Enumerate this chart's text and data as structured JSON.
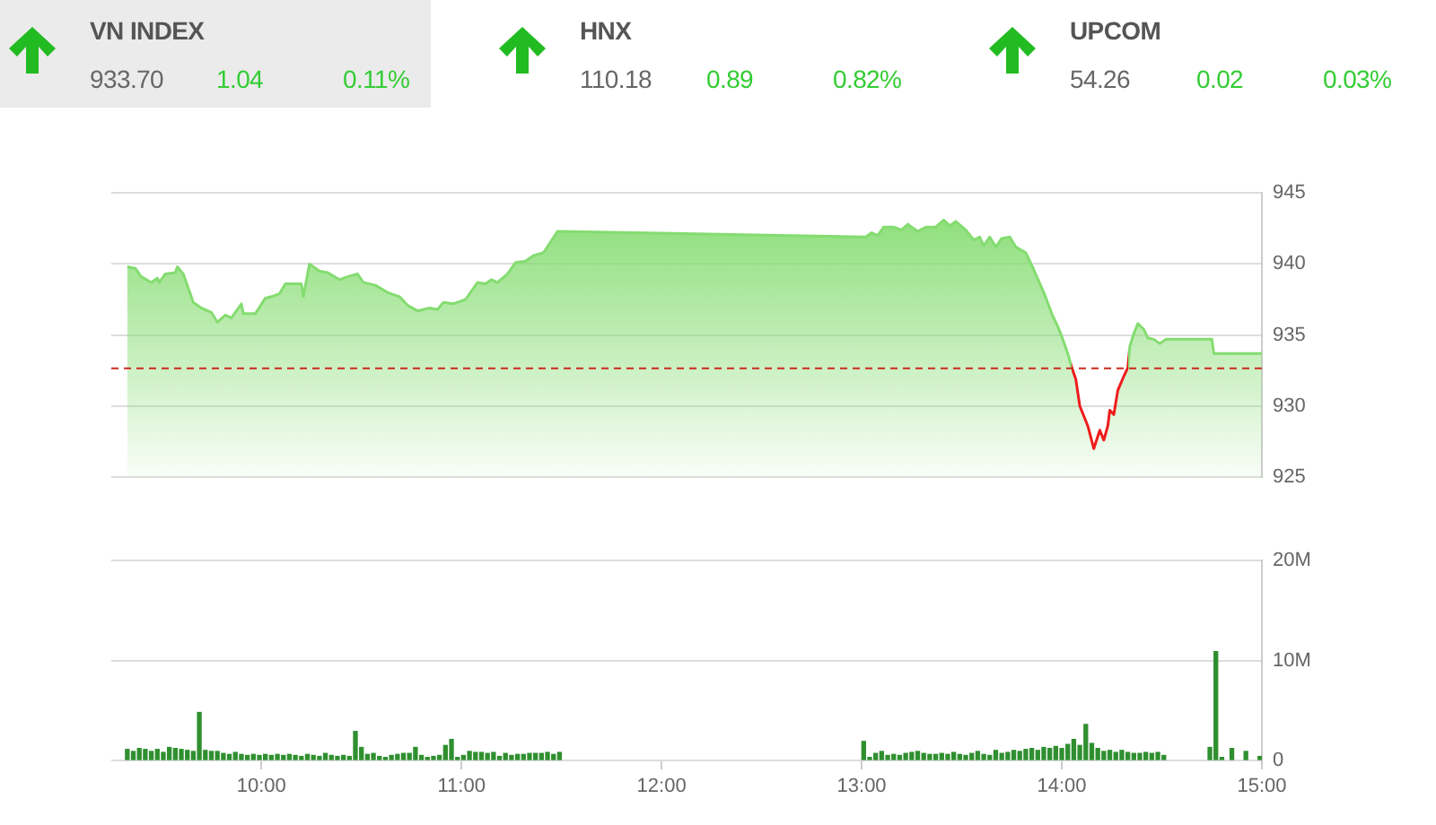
{
  "chart_data": [
    {
      "type": "other",
      "title": "VN INDEX",
      "annotations": [
        "933.70",
        "1.04",
        "0.11%"
      ]
    },
    {
      "type": "other",
      "title": "HNX",
      "annotations": [
        "110.18",
        "0.89",
        "0.82%"
      ]
    },
    {
      "type": "other",
      "title": "UPCOM",
      "annotations": [
        "54.26",
        "0.02",
        "0.03%"
      ]
    },
    {
      "type": "area",
      "color": "#84dc70",
      "x": [
        9.33,
        9.37,
        9.4,
        9.45,
        9.48,
        9.49,
        9.52,
        9.57,
        9.58,
        9.61,
        9.66,
        9.7,
        9.75,
        9.78,
        9.82,
        9.85,
        9.9,
        9.91,
        9.97,
        10.02,
        10.05,
        10.09,
        10.12,
        10.2,
        10.21,
        10.24,
        10.29,
        10.33,
        10.39,
        10.43,
        10.48,
        10.51,
        10.57,
        10.63,
        10.69,
        10.73,
        10.78,
        10.84,
        10.88,
        10.91,
        10.96,
        11.02,
        11.08,
        11.12,
        11.15,
        11.18,
        11.23,
        11.27,
        11.32,
        11.36,
        11.41,
        11.48,
        13.02,
        13.05,
        13.08,
        13.11,
        13.16,
        13.2,
        13.23,
        13.28,
        13.32,
        13.37,
        13.41,
        13.44,
        13.47,
        13.52,
        13.56,
        13.59,
        13.61,
        13.64,
        13.67,
        13.7,
        13.74,
        13.77,
        13.82,
        13.86,
        13.91,
        13.95,
        13.98,
        14,
        14.03,
        14.05,
        14.07,
        14.09,
        14.13,
        14.16,
        14.19,
        14.21,
        14.23,
        14.24,
        14.26,
        14.28,
        14.31,
        14.33,
        14.34,
        14.36,
        14.38,
        14.41,
        14.43,
        14.46,
        14.49,
        14.52,
        14.75,
        14.76,
        15
      ],
      "values": [
        939.8,
        939.7,
        939.1,
        938.7,
        939.0,
        938.7,
        939.3,
        939.4,
        939.8,
        939.3,
        937.3,
        936.9,
        936.6,
        935.9,
        936.4,
        936.2,
        937.2,
        936.5,
        936.5,
        937.6,
        937.7,
        937.9,
        938.6,
        938.6,
        937.7,
        940.0,
        939.5,
        939.4,
        938.9,
        939.1,
        939.3,
        938.7,
        938.5,
        938.0,
        937.7,
        937.1,
        936.7,
        936.9,
        936.8,
        937.3,
        937.2,
        937.5,
        938.7,
        938.6,
        938.9,
        938.7,
        939.3,
        940.1,
        940.2,
        940.6,
        940.8,
        942.3,
        941.9,
        942.2,
        942.0,
        942.6,
        942.6,
        942.4,
        942.8,
        942.3,
        942.6,
        942.6,
        943.1,
        942.7,
        943.0,
        942.4,
        941.7,
        941.9,
        941.3,
        941.9,
        941.2,
        941.8,
        941.9,
        941.2,
        940.8,
        939.6,
        938.0,
        936.5,
        935.6,
        934.9,
        933.7,
        932.7,
        931.9,
        930.0,
        928.6,
        927.0,
        928.3,
        927.6,
        928.6,
        929.7,
        929.4,
        931.1,
        932.1,
        932.7,
        934.2,
        935.1,
        935.8,
        935.4,
        934.8,
        934.7,
        934.4,
        934.7,
        934.7,
        933.7,
        933.7
      ],
      "colors": [
        "#84dc70",
        "#84dc70",
        "#84dc70",
        "#84dc70",
        "#84dc70",
        "#84dc70",
        "#84dc70",
        "#84dc70",
        "#84dc70",
        "#84dc70",
        "#84dc70",
        "#84dc70",
        "#84dc70",
        "#84dc70",
        "#84dc70",
        "#84dc70",
        "#84dc70",
        "#84dc70",
        "#84dc70",
        "#84dc70",
        "#84dc70",
        "#84dc70",
        "#84dc70",
        "#84dc70",
        "#84dc70",
        "#84dc70",
        "#84dc70",
        "#84dc70",
        "#84dc70",
        "#84dc70",
        "#84dc70",
        "#84dc70",
        "#84dc70",
        "#84dc70",
        "#84dc70",
        "#84dc70",
        "#84dc70",
        "#84dc70",
        "#84dc70",
        "#84dc70",
        "#84dc70",
        "#84dc70",
        "#84dc70",
        "#84dc70",
        "#84dc70",
        "#84dc70",
        "#84dc70",
        "#84dc70",
        "#84dc70",
        "#84dc70",
        "#84dc70",
        "#84dc70",
        "#84dc70",
        "#84dc70",
        "#84dc70",
        "#84dc70",
        "#84dc70",
        "#84dc70",
        "#84dc70",
        "#84dc70",
        "#84dc70",
        "#84dc70",
        "#84dc70",
        "#84dc70",
        "#84dc70",
        "#84dc70",
        "#84dc70",
        "#84dc70",
        "#84dc70",
        "#84dc70",
        "#84dc70",
        "#84dc70",
        "#84dc70",
        "#84dc70",
        "#84dc70",
        "#84dc70",
        "#84dc70",
        "#84dc70",
        "#84dc70",
        "#84dc70",
        "#84dc70",
        "#84dc70",
        "#ee1c1c",
        "#ee1c1c",
        "#ee1c1c",
        "#ee1c1c",
        "#ee1c1c",
        "#ee1c1c",
        "#ee1c1c",
        "#ee1c1c",
        "#ee1c1c",
        "#ee1c1c",
        "#ee1c1c",
        "#84dc70",
        "#84dc70",
        "#84dc70",
        "#84dc70",
        "#84dc70",
        "#84dc70",
        "#84dc70",
        "#84dc70",
        "#84dc70",
        "#84dc70",
        "#84dc70",
        "#84dc70"
      ],
      "xlim": [
        9.25,
        15
      ],
      "ylim": [
        925,
        945
      ],
      "yticks": [
        925,
        930,
        935,
        940,
        945
      ],
      "grid": "y",
      "tick_labels": "y",
      "ref_lines": [
        {
          "axis": "y",
          "value": 932.66,
          "color": "#cc2a1e",
          "line_style": "dashed"
        }
      ]
    },
    {
      "type": "bar",
      "color": "#2f8f2f",
      "x": [
        9.33,
        9.36,
        9.39,
        9.42,
        9.45,
        9.48,
        9.51,
        9.54,
        9.57,
        9.6,
        9.63,
        9.66,
        9.69,
        9.72,
        9.75,
        9.78,
        9.81,
        9.84,
        9.87,
        9.9,
        9.93,
        9.96,
        9.99,
        10.02,
        10.05,
        10.08,
        10.11,
        10.14,
        10.17,
        10.2,
        10.23,
        10.26,
        10.29,
        10.32,
        10.35,
        10.38,
        10.41,
        10.44,
        10.47,
        10.5,
        10.53,
        10.56,
        10.59,
        10.62,
        10.65,
        10.68,
        10.71,
        10.74,
        10.77,
        10.8,
        10.83,
        10.86,
        10.89,
        10.92,
        10.95,
        10.98,
        11.01,
        11.04,
        11.07,
        11.1,
        11.13,
        11.16,
        11.19,
        11.22,
        11.25,
        11.28,
        11.31,
        11.34,
        11.37,
        11.4,
        11.43,
        11.46,
        11.49,
        13.01,
        13.04,
        13.07,
        13.1,
        13.13,
        13.16,
        13.19,
        13.22,
        13.25,
        13.28,
        13.31,
        13.34,
        13.37,
        13.4,
        13.43,
        13.46,
        13.49,
        13.52,
        13.55,
        13.58,
        13.61,
        13.64,
        13.67,
        13.7,
        13.73,
        13.76,
        13.79,
        13.82,
        13.85,
        13.88,
        13.91,
        13.94,
        13.97,
        14,
        14.03,
        14.06,
        14.09,
        14.12,
        14.15,
        14.18,
        14.21,
        14.24,
        14.27,
        14.3,
        14.33,
        14.36,
        14.39,
        14.42,
        14.45,
        14.48,
        14.51,
        14.74,
        14.77,
        14.8,
        14.85,
        14.92,
        14.99
      ],
      "values": [
        1100000,
        900000,
        1200000,
        1100000,
        900000,
        1100000,
        800000,
        1300000,
        1200000,
        1100000,
        1000000,
        900000,
        4800000,
        1000000,
        900000,
        900000,
        700000,
        600000,
        800000,
        600000,
        500000,
        600000,
        500000,
        600000,
        500000,
        600000,
        500000,
        600000,
        500000,
        400000,
        600000,
        500000,
        400000,
        700000,
        500000,
        400000,
        500000,
        400000,
        2900000,
        1300000,
        600000,
        700000,
        400000,
        300000,
        500000,
        600000,
        700000,
        700000,
        1300000,
        500000,
        300000,
        400000,
        500000,
        1500000,
        2100000,
        300000,
        500000,
        900000,
        800000,
        800000,
        700000,
        800000,
        400000,
        700000,
        500000,
        600000,
        600000,
        700000,
        700000,
        700000,
        800000,
        600000,
        800000,
        1900000,
        300000,
        700000,
        900000,
        500000,
        600000,
        500000,
        700000,
        800000,
        900000,
        700000,
        600000,
        600000,
        700000,
        600000,
        800000,
        600000,
        500000,
        700000,
        900000,
        600000,
        500000,
        1000000,
        700000,
        800000,
        1000000,
        900000,
        1100000,
        1200000,
        1000000,
        1300000,
        1200000,
        1400000,
        1200000,
        1600000,
        2100000,
        1500000,
        3600000,
        1700000,
        1200000,
        900000,
        1000000,
        800000,
        1000000,
        800000,
        700000,
        700000,
        800000,
        700000,
        800000,
        500000,
        1300000,
        10900000,
        300000,
        1200000,
        900000,
        400000
      ],
      "xlim": [
        9.25,
        15
      ],
      "xticks": [
        {
          "value": 10,
          "label": "10:00"
        },
        {
          "value": 11,
          "label": "11:00"
        },
        {
          "value": 12,
          "label": "12:00"
        },
        {
          "value": 13,
          "label": "13:00"
        },
        {
          "value": 14,
          "label": "14:00"
        },
        {
          "value": 15,
          "label": "15:00"
        }
      ],
      "ylim": [
        0,
        20000000
      ],
      "yticks": [
        0,
        {
          "value": 10000000,
          "label": "10M"
        },
        {
          "value": 20000000,
          "label": "20M"
        }
      ],
      "grid": "y"
    }
  ]
}
